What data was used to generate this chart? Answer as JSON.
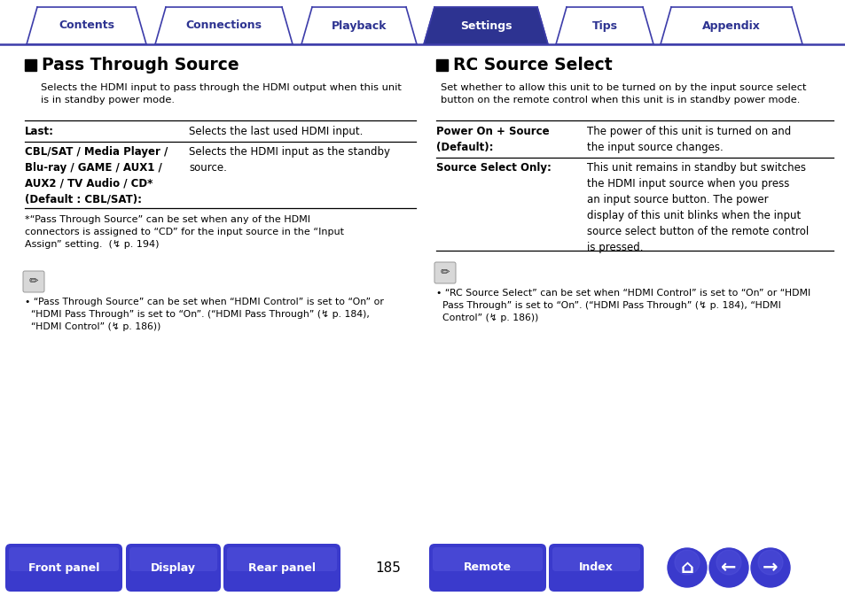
{
  "tab_labels": [
    "Contents",
    "Connections",
    "Playback",
    "Settings",
    "Tips",
    "Appendix"
  ],
  "active_tab": "Settings",
  "tab_color_active": "#2d3391",
  "tab_color_inactive": "#ffffff",
  "tab_border_color": "#3d3daa",
  "tab_text_active": "#ffffff",
  "tab_text_inactive": "#2d3391",
  "bottom_buttons": [
    "Front panel",
    "Display",
    "Rear panel",
    "Remote",
    "Index"
  ],
  "bottom_btn_color": "#3a3acc",
  "page_number": "185",
  "bg_color": "#ffffff",
  "text_color": "#000000",
  "header_line_color": "#3d3daa",
  "title_left": "Pass Through Source",
  "title_right": "RC Source Select",
  "section1_intro": "Selects the HDMI input to pass through the HDMI output when this unit\nis in standby power mode.",
  "section2_intro": "Set whether to allow this unit to be turned on by the input source select\nbutton on the remote control when this unit is in standby power mode.",
  "note1_star": "*“Pass Through Source” can be set when any of the HDMI\nconnectors is assigned to “CD” for the input source in the “Input\nAssign” setting.  (↯ p. 194)",
  "note1_bullet": "• “Pass Through Source” can be set when “HDMI Control” is set to “On” or\n  “HDMI Pass Through” is set to “On”. (“HDMI Pass Through” (↯ p. 184),\n  “HDMI Control” (↯ p. 186))",
  "note2_bullet": "• “RC Source Select” can be set when “HDMI Control” is set to “On” or “HDMI\n  Pass Through” is set to “On”. (“HDMI Pass Through” (↯ p. 184), “HDMI\n  Control” (↯ p. 186))"
}
